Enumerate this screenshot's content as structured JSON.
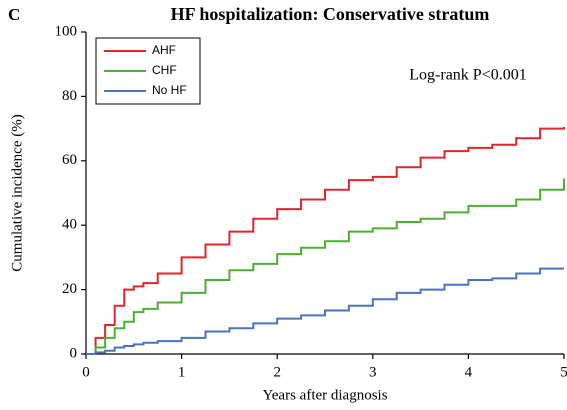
{
  "chart_data": {
    "type": "line",
    "step": true,
    "panel_label": "C",
    "title": "HF hospitalization: Conservative stratum",
    "x_label": "Years after diagnosis",
    "y_label": "Cumulative incidence (%)",
    "annotation": "Log-rank P<0.001",
    "x": [
      0,
      0.1,
      0.2,
      0.3,
      0.4,
      0.5,
      0.6,
      0.75,
      1.0,
      1.25,
      1.5,
      1.75,
      2.0,
      2.25,
      2.5,
      2.75,
      3.0,
      3.25,
      3.5,
      3.75,
      4.0,
      4.25,
      4.5,
      4.75,
      5.0
    ],
    "series": [
      {
        "name": "AHF",
        "color": "#e0252b",
        "values": [
          0,
          5,
          9,
          15,
          20,
          21,
          22,
          25,
          30,
          34,
          38,
          42,
          45,
          48,
          51,
          54,
          55,
          58,
          61,
          63,
          64,
          65,
          67,
          70,
          70.5
        ]
      },
      {
        "name": "CHF",
        "color": "#4caf32",
        "values": [
          0,
          2,
          5,
          8,
          10,
          13,
          14,
          16,
          19,
          23,
          26,
          28,
          31,
          33,
          35,
          38,
          39,
          41,
          42,
          44,
          46,
          46,
          48,
          51,
          54.5
        ]
      },
      {
        "name": "No HF",
        "color": "#4a72c4",
        "values": [
          0,
          0.5,
          1,
          2,
          2.5,
          3,
          3.5,
          4,
          5,
          7,
          8,
          9.5,
          11,
          12,
          13.5,
          15,
          17,
          19,
          20,
          21.5,
          23,
          23.5,
          25,
          26.5,
          26.5
        ]
      }
    ],
    "xlim": [
      0,
      5
    ],
    "xticks": [
      0,
      1,
      2,
      3,
      4,
      5
    ],
    "ylim": [
      0,
      100
    ],
    "yticks": [
      0,
      20,
      40,
      60,
      80,
      100
    ],
    "grid": false,
    "legend": "upper left"
  }
}
